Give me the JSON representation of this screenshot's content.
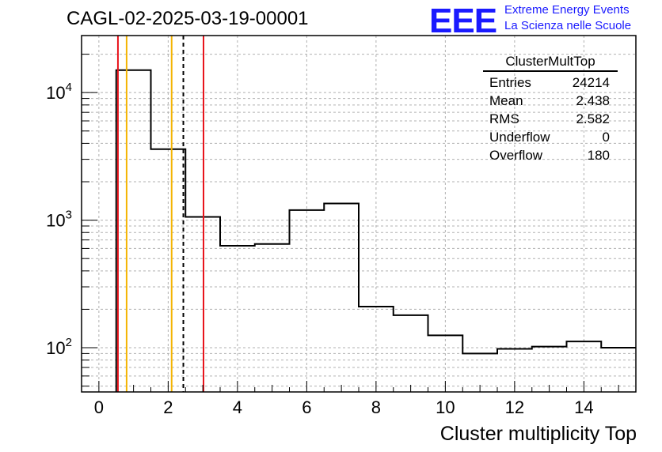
{
  "header": {
    "run_title": "CAGL-02-2025-03-19-00001",
    "logo_text": "EEE",
    "logo_line1": "Extreme Energy Events",
    "logo_line2": "La Scienza nelle Scuole"
  },
  "stats": {
    "name": "ClusterMultTop",
    "rows": [
      {
        "label": "Entries",
        "value": "24214"
      },
      {
        "label": "Mean",
        "value": "2.438"
      },
      {
        "label": "RMS",
        "value": "2.582"
      },
      {
        "label": "Underflow",
        "value": "0"
      },
      {
        "label": "Overflow",
        "value": "180"
      }
    ]
  },
  "colors": {
    "red_line": "#e8141c",
    "orange_line": "#f4b400",
    "histogram": "#000000",
    "grid": "#b0b0b0"
  },
  "chart_data": {
    "type": "histogram",
    "xlabel": "Cluster multiplicity Top",
    "ylabel": "",
    "xlim": [
      -0.5,
      15.5
    ],
    "ylim": [
      45,
      28000
    ],
    "yscale": "log",
    "grid": true,
    "x_ticks": [
      0,
      2,
      4,
      6,
      8,
      10,
      12,
      14
    ],
    "y_ticks": [
      {
        "value": 100,
        "base": "10",
        "exp": "2"
      },
      {
        "value": 1000,
        "base": "10",
        "exp": "3"
      },
      {
        "value": 10000,
        "base": "10",
        "exp": "4"
      }
    ],
    "bins": [
      {
        "lo": 0.5,
        "hi": 1.5,
        "value": 15000
      },
      {
        "lo": 1.5,
        "hi": 2.5,
        "value": 3600
      },
      {
        "lo": 2.5,
        "hi": 3.5,
        "value": 1060
      },
      {
        "lo": 3.5,
        "hi": 4.5,
        "value": 630
      },
      {
        "lo": 4.5,
        "hi": 5.5,
        "value": 650
      },
      {
        "lo": 5.5,
        "hi": 6.5,
        "value": 1200
      },
      {
        "lo": 6.5,
        "hi": 7.5,
        "value": 1350
      },
      {
        "lo": 7.5,
        "hi": 8.5,
        "value": 210
      },
      {
        "lo": 8.5,
        "hi": 9.5,
        "value": 180
      },
      {
        "lo": 9.5,
        "hi": 10.5,
        "value": 125
      },
      {
        "lo": 10.5,
        "hi": 11.5,
        "value": 90
      },
      {
        "lo": 11.5,
        "hi": 12.5,
        "value": 98
      },
      {
        "lo": 12.5,
        "hi": 13.5,
        "value": 102
      },
      {
        "lo": 13.5,
        "hi": 14.5,
        "value": 112
      },
      {
        "lo": 14.5,
        "hi": 15.5,
        "value": 100
      }
    ],
    "vertical_lines": [
      {
        "x": 0.55,
        "color": "#e8141c",
        "style": "solid"
      },
      {
        "x": 0.8,
        "color": "#f4b400",
        "style": "solid"
      },
      {
        "x": 2.1,
        "color": "#f4b400",
        "style": "solid"
      },
      {
        "x": 2.438,
        "color": "#000000",
        "style": "dashed"
      },
      {
        "x": 3.02,
        "color": "#e8141c",
        "style": "solid"
      }
    ]
  }
}
